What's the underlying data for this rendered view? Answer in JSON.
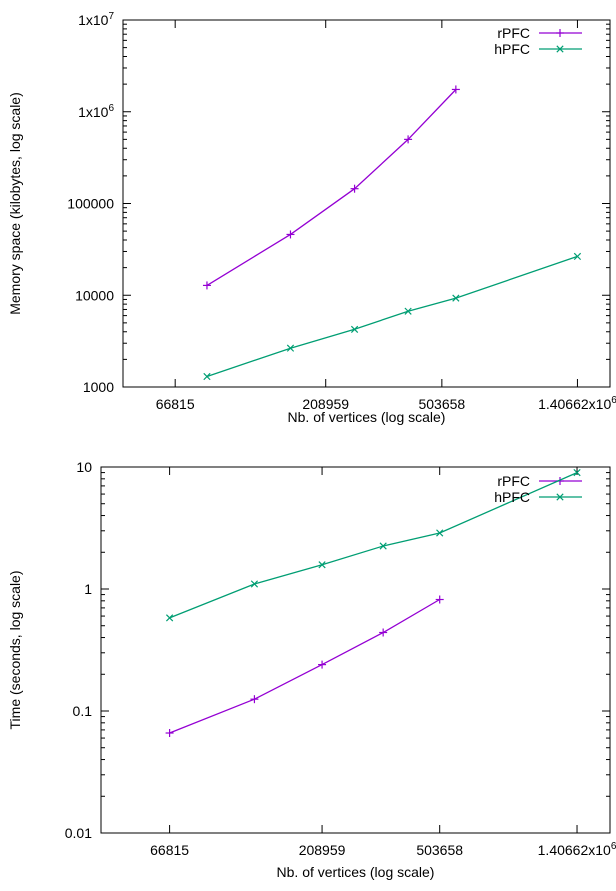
{
  "chart_data": [
    {
      "type": "line",
      "xscale": "log",
      "yscale": "log",
      "xlabel": "Nb. of vertices (log scale)",
      "ylabel": "Memory space (kilobytes, log scale)",
      "xlim": [
        45000,
        1800000
      ],
      "ylim": [
        1000,
        10000000
      ],
      "xticks": [
        {
          "value": 66815,
          "base": "66815",
          "exp": ""
        },
        {
          "value": 208959,
          "base": "208959",
          "exp": ""
        },
        {
          "value": 503658,
          "base": "503658",
          "exp": ""
        },
        {
          "value": 1406620,
          "base": "1.40662x10",
          "exp": "6"
        }
      ],
      "yticks": [
        {
          "value": 1000,
          "base": "1000",
          "exp": ""
        },
        {
          "value": 10000,
          "base": "10000",
          "exp": ""
        },
        {
          "value": 100000,
          "base": "100000",
          "exp": ""
        },
        {
          "value": 1000000,
          "base": "1x10",
          "exp": "6"
        },
        {
          "value": 10000000,
          "base": "1x10",
          "exp": "7"
        }
      ],
      "legend_position": "top-right",
      "series": [
        {
          "name": "rPFC",
          "color": "#9400d3",
          "marker": "plus",
          "x": [
            85000,
            160000,
            260000,
            390000,
            560000
          ],
          "y": [
            12800,
            46000,
            145000,
            500000,
            1750000
          ]
        },
        {
          "name": "hPFC",
          "color": "#009e73",
          "marker": "cross",
          "x": [
            85000,
            160000,
            260000,
            390000,
            560000,
            1406620
          ],
          "y": [
            1300,
            2650,
            4250,
            6700,
            9300,
            26500
          ]
        }
      ]
    },
    {
      "type": "line",
      "xscale": "log",
      "yscale": "log",
      "xlabel": "Nb. of vertices (log scale)",
      "ylabel": "Time (seconds, log scale)",
      "xlim": [
        40000,
        1800000
      ],
      "ylim": [
        0.01,
        10
      ],
      "xticks": [
        {
          "value": 66815,
          "base": "66815",
          "exp": ""
        },
        {
          "value": 208959,
          "base": "208959",
          "exp": ""
        },
        {
          "value": 503658,
          "base": "503658",
          "exp": ""
        },
        {
          "value": 1406620,
          "base": "1.40662x10",
          "exp": "6"
        }
      ],
      "yticks": [
        {
          "value": 0.01,
          "base": "0.01",
          "exp": ""
        },
        {
          "value": 0.1,
          "base": "0.1",
          "exp": ""
        },
        {
          "value": 1,
          "base": "1",
          "exp": ""
        },
        {
          "value": 10,
          "base": "10",
          "exp": ""
        }
      ],
      "legend_position": "top-right",
      "series": [
        {
          "name": "rPFC",
          "color": "#9400d3",
          "marker": "plus",
          "x": [
            66815,
            126000,
            208959,
            330000,
            503658
          ],
          "y": [
            0.066,
            0.125,
            0.24,
            0.44,
            0.82
          ]
        },
        {
          "name": "hPFC",
          "color": "#009e73",
          "marker": "cross",
          "x": [
            66815,
            126000,
            208959,
            330000,
            503658,
            1406620
          ],
          "y": [
            0.58,
            1.1,
            1.58,
            2.25,
            2.88,
            9.0
          ]
        }
      ]
    }
  ]
}
